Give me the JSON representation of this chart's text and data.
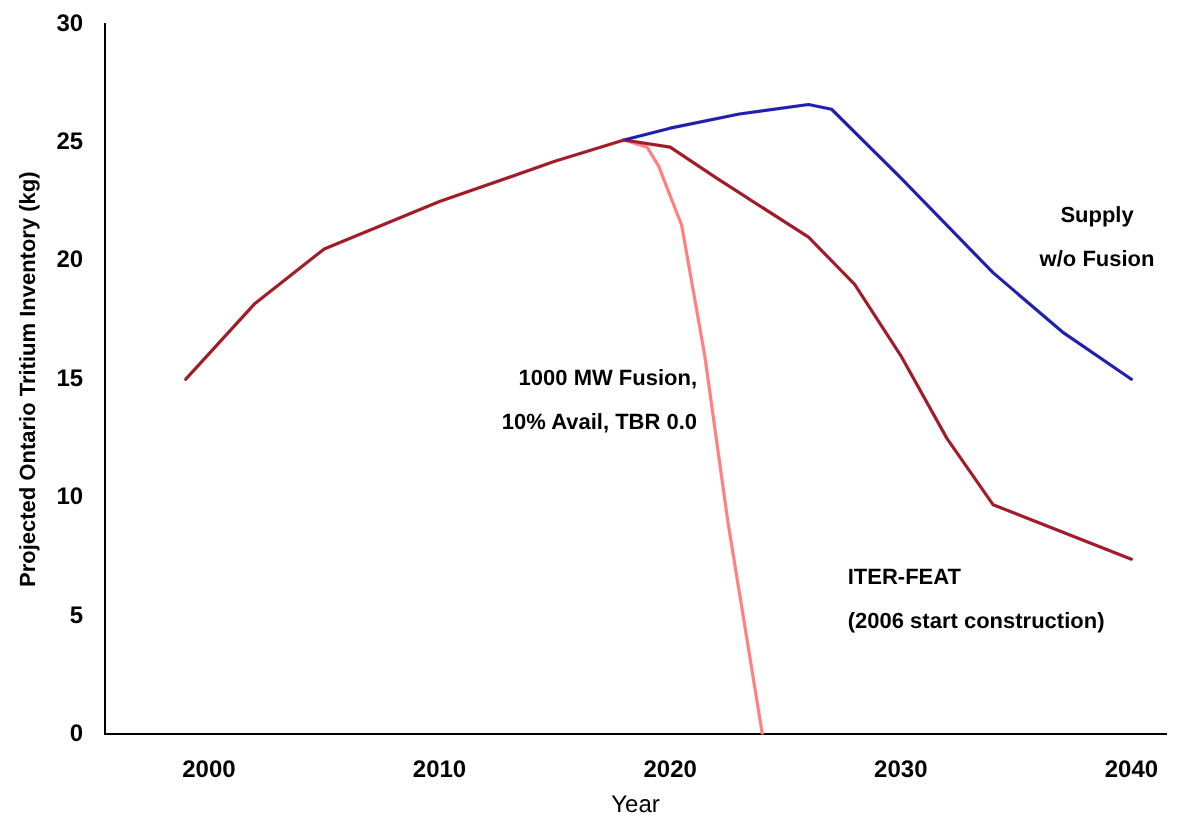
{
  "chart_data": {
    "type": "line",
    "xlabel": "Year",
    "ylabel": "Projected Ontario Tritium Inventory (kg)",
    "xlim": [
      1995.5,
      2041.5
    ],
    "xticks": [
      2000,
      2010,
      2020,
      2030,
      2040
    ],
    "ylim": [
      0,
      30
    ],
    "yticks": [
      0,
      5,
      10,
      15,
      20,
      25,
      30
    ],
    "grid": false,
    "legend": false,
    "marker": "none",
    "line_style": "solid",
    "series": [
      {
        "color": "#a01c28",
        "x": [
          1999,
          2002,
          2005,
          2010,
          2015,
          2018
        ],
        "values": [
          15,
          18.2,
          20.5,
          22.5,
          24.2,
          25.1
        ]
      },
      {
        "name": "Supply w/o Fusion",
        "color": "#2020b0",
        "x": [
          2018,
          2020,
          2023,
          2026,
          2027,
          2030,
          2034,
          2037,
          2040
        ],
        "values": [
          25.1,
          25.6,
          26.2,
          26.6,
          26.4,
          23.5,
          19.5,
          17,
          15
        ]
      },
      {
        "name": "ITER-FEAT (2006 start construction)",
        "color": "#a01c28",
        "x": [
          2018,
          2020,
          2022,
          2026,
          2028,
          2030,
          2032,
          2034,
          2040
        ],
        "values": [
          25.1,
          24.8,
          23.5,
          21,
          19,
          16,
          12.5,
          9.7,
          7.4
        ]
      },
      {
        "name": "1000 MW Fusion, 10% Avail, TBR 0.0",
        "color": "#ff8080",
        "x": [
          2018,
          2019,
          2019.5,
          2020.5,
          2021.5,
          2022.5,
          2023.5,
          2024
        ],
        "values": [
          25.1,
          24.8,
          24,
          21.5,
          16,
          9,
          3,
          0
        ]
      }
    ]
  }
}
